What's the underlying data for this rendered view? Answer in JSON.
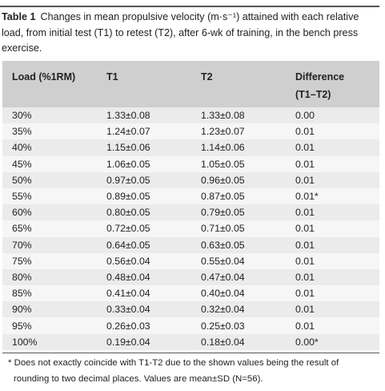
{
  "caption": {
    "label": "Table 1",
    "text": "Changes in mean propulsive velocity (m·s⁻¹) attained with each relative load, from initial test (T1) to retest (T2), after 6-wk of training, in the bench press exercise."
  },
  "table": {
    "headers": [
      "Load (%1RM)",
      "T1",
      "T2",
      "Difference (T1–T2)"
    ],
    "rows": [
      [
        "30%",
        "1.33±0.08",
        "1.33±0.08",
        "0.00"
      ],
      [
        "35%",
        "1.24±0.07",
        "1.23±0.07",
        "0.01"
      ],
      [
        "40%",
        "1.15±0.06",
        "1.14±0.06",
        "0.01"
      ],
      [
        "45%",
        "1.06±0.05",
        "1.05±0.05",
        "0.01"
      ],
      [
        "50%",
        "0.97±0.05",
        "0.96±0.05",
        "0.01"
      ],
      [
        "55%",
        "0.89±0.05",
        "0.87±0.05",
        "0.01*"
      ],
      [
        "60%",
        "0.80±0.05",
        "0.79±0.05",
        "0.01"
      ],
      [
        "65%",
        "0.72±0.05",
        "0.71±0.05",
        "0.01"
      ],
      [
        "70%",
        "0.64±0.05",
        "0.63±0.05",
        "0.01"
      ],
      [
        "75%",
        "0.56±0.04",
        "0.55±0.04",
        "0.01"
      ],
      [
        "80%",
        "0.48±0.04",
        "0.47±0.04",
        "0.01"
      ],
      [
        "85%",
        "0.41±0.04",
        "0.40±0.04",
        "0.01"
      ],
      [
        "90%",
        "0.33±0.04",
        "0.32±0.04",
        "0.01"
      ],
      [
        "95%",
        "0.26±0.03",
        "0.25±0.03",
        "0.01"
      ],
      [
        "100%",
        "0.19±0.04",
        "0.18±0.04",
        "0.00*"
      ]
    ]
  },
  "footnote": {
    "line1": "* Does not exactly coincide with T1-T2 due to the shown values being the result of",
    "line2": "rounding to two decimal places. Values are mean±SD (N=56)."
  },
  "colors": {
    "header_bg": "#cfcfcf",
    "row_odd_bg": "#ebebeb",
    "row_even_bg": "#f6f6f6",
    "rule": "#555555"
  }
}
